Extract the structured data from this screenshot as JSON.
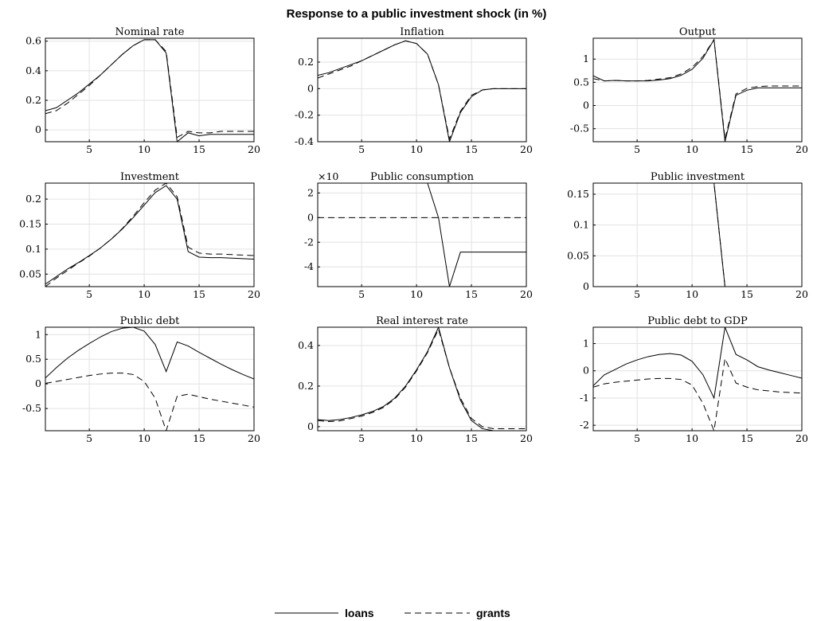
{
  "figure_title": "Response to a public investment shock (in %)",
  "legend": {
    "loans_label": "loans",
    "grants_label": "grants"
  },
  "chart_data": [
    {
      "type": "line",
      "title": "Nominal rate",
      "xlim": [
        1,
        20
      ],
      "ylim": [
        -0.08,
        0.62
      ],
      "xticks": [
        5,
        10,
        15,
        20
      ],
      "yticks": [
        0,
        0.2,
        0.4,
        0.6
      ],
      "ytick_labels": [
        "0",
        "0.2",
        "0.4",
        "0.6"
      ],
      "exponent_label": "",
      "x": [
        1,
        2,
        3,
        4,
        5,
        6,
        7,
        8,
        9,
        10,
        11,
        12,
        13,
        14,
        15,
        16,
        17,
        18,
        19,
        20
      ],
      "series": [
        {
          "name": "loans",
          "values": [
            0.13,
            0.15,
            0.2,
            0.25,
            0.31,
            0.37,
            0.44,
            0.51,
            0.57,
            0.61,
            0.61,
            0.52,
            -0.08,
            -0.02,
            -0.04,
            -0.03,
            -0.03,
            -0.03,
            -0.03,
            -0.03
          ]
        },
        {
          "name": "grants",
          "values": [
            0.11,
            0.13,
            0.18,
            0.24,
            0.3,
            0.37,
            0.44,
            0.51,
            0.57,
            0.61,
            0.61,
            0.53,
            -0.05,
            -0.01,
            -0.02,
            -0.02,
            -0.01,
            -0.01,
            -0.01,
            -0.01
          ]
        }
      ]
    },
    {
      "type": "line",
      "title": "Inflation",
      "xlim": [
        1,
        20
      ],
      "ylim": [
        -0.4,
        0.38
      ],
      "xticks": [
        5,
        10,
        15,
        20
      ],
      "yticks": [
        -0.4,
        -0.2,
        0,
        0.2
      ],
      "ytick_labels": [
        "-0.4",
        "-0.2",
        "0",
        "0.2"
      ],
      "exponent_label": "",
      "x": [
        1,
        2,
        3,
        4,
        5,
        6,
        7,
        8,
        9,
        10,
        11,
        12,
        13,
        14,
        15,
        16,
        17,
        18,
        19,
        20
      ],
      "series": [
        {
          "name": "loans",
          "values": [
            0.1,
            0.12,
            0.15,
            0.18,
            0.21,
            0.25,
            0.29,
            0.33,
            0.36,
            0.34,
            0.26,
            0.03,
            -0.4,
            -0.18,
            -0.06,
            -0.01,
            0,
            0,
            0,
            0
          ]
        },
        {
          "name": "grants",
          "values": [
            0.08,
            0.11,
            0.14,
            0.17,
            0.21,
            0.25,
            0.29,
            0.33,
            0.36,
            0.34,
            0.26,
            0.03,
            -0.38,
            -0.17,
            -0.05,
            -0.01,
            0,
            0,
            0,
            0
          ]
        }
      ]
    },
    {
      "type": "line",
      "title": "Output",
      "xlim": [
        1,
        20
      ],
      "ylim": [
        -0.78,
        1.45
      ],
      "xticks": [
        5,
        10,
        15,
        20
      ],
      "yticks": [
        -0.5,
        0,
        0.5,
        1
      ],
      "ytick_labels": [
        "-0.5",
        "0",
        "0.5",
        "1"
      ],
      "exponent_label": "",
      "x": [
        1,
        2,
        3,
        4,
        5,
        6,
        7,
        8,
        9,
        10,
        11,
        12,
        13,
        14,
        15,
        16,
        17,
        18,
        19,
        20
      ],
      "series": [
        {
          "name": "loans",
          "values": [
            0.64,
            0.53,
            0.54,
            0.53,
            0.53,
            0.53,
            0.55,
            0.58,
            0.65,
            0.78,
            1.02,
            1.42,
            -0.78,
            0.22,
            0.33,
            0.38,
            0.38,
            0.38,
            0.38,
            0.38
          ]
        },
        {
          "name": "grants",
          "values": [
            0.58,
            0.53,
            0.54,
            0.53,
            0.53,
            0.54,
            0.57,
            0.6,
            0.68,
            0.82,
            1.06,
            1.42,
            -0.72,
            0.25,
            0.37,
            0.41,
            0.42,
            0.42,
            0.42,
            0.42
          ]
        }
      ]
    },
    {
      "type": "line",
      "title": "Investment",
      "xlim": [
        1,
        20
      ],
      "ylim": [
        0.025,
        0.232
      ],
      "xticks": [
        5,
        10,
        15,
        20
      ],
      "yticks": [
        0.05,
        0.1,
        0.15,
        0.2
      ],
      "ytick_labels": [
        "0.05",
        "0.1",
        "0.15",
        "0.2"
      ],
      "exponent_label": "",
      "x": [
        1,
        2,
        3,
        4,
        5,
        6,
        7,
        8,
        9,
        10,
        11,
        12,
        13,
        14,
        15,
        16,
        17,
        18,
        19,
        20
      ],
      "series": [
        {
          "name": "loans",
          "values": [
            0.03,
            0.045,
            0.06,
            0.073,
            0.087,
            0.102,
            0.12,
            0.14,
            0.163,
            0.188,
            0.213,
            0.227,
            0.2,
            0.095,
            0.084,
            0.083,
            0.083,
            0.082,
            0.081,
            0.08
          ]
        },
        {
          "name": "grants",
          "values": [
            0.025,
            0.042,
            0.057,
            0.072,
            0.086,
            0.102,
            0.12,
            0.141,
            0.166,
            0.193,
            0.218,
            0.232,
            0.205,
            0.104,
            0.092,
            0.09,
            0.09,
            0.089,
            0.088,
            0.087
          ]
        }
      ]
    },
    {
      "type": "line",
      "title": "Public consumption",
      "xlim": [
        1,
        20
      ],
      "ylim": [
        -5.6,
        2.8
      ],
      "xticks": [
        5,
        10,
        15,
        20
      ],
      "yticks": [
        -4,
        -2,
        0,
        2
      ],
      "ytick_labels": [
        "-4",
        "-2",
        "0",
        "2"
      ],
      "exponent_label": "×10",
      "x": [
        1,
        2,
        3,
        4,
        5,
        6,
        7,
        8,
        9,
        10,
        11,
        12,
        13,
        14,
        15,
        16,
        17,
        18,
        19,
        20
      ],
      "series": [
        {
          "name": "loans",
          "values": [
            2.8,
            2.8,
            2.8,
            2.8,
            2.8,
            2.8,
            2.8,
            2.8,
            2.8,
            2.8,
            2.8,
            0,
            -5.6,
            -2.8,
            -2.8,
            -2.8,
            -2.8,
            -2.8,
            -2.8,
            -2.8
          ]
        },
        {
          "name": "grants",
          "values": [
            0,
            0,
            0,
            0,
            0,
            0,
            0,
            0,
            0,
            0,
            0,
            0,
            0,
            0,
            0,
            0,
            0,
            0,
            0,
            0
          ]
        }
      ]
    },
    {
      "type": "line",
      "title": "Public investment",
      "xlim": [
        1,
        20
      ],
      "ylim": [
        0,
        0.168
      ],
      "xticks": [
        5,
        10,
        15,
        20
      ],
      "yticks": [
        0,
        0.05,
        0.1,
        0.15
      ],
      "ytick_labels": [
        "0",
        "0.05",
        "0.1",
        "0.15"
      ],
      "exponent_label": "",
      "x": [
        1,
        2,
        3,
        4,
        5,
        6,
        7,
        8,
        9,
        10,
        11,
        12,
        13,
        14,
        15,
        16,
        17,
        18,
        19,
        20
      ],
      "series": [
        {
          "name": "loans",
          "values": [
            0.168,
            0.168,
            0.168,
            0.168,
            0.168,
            0.168,
            0.168,
            0.168,
            0.168,
            0.168,
            0.168,
            0.168,
            0,
            0,
            0,
            0,
            0,
            0,
            0,
            0
          ]
        },
        {
          "name": "grants",
          "values": [
            0.168,
            0.168,
            0.168,
            0.168,
            0.168,
            0.168,
            0.168,
            0.168,
            0.168,
            0.168,
            0.168,
            0.168,
            0,
            0,
            0,
            0,
            0,
            0,
            0,
            0
          ]
        }
      ]
    },
    {
      "type": "line",
      "title": "Public debt",
      "xlim": [
        1,
        20
      ],
      "ylim": [
        -0.95,
        1.15
      ],
      "xticks": [
        5,
        10,
        15,
        20
      ],
      "yticks": [
        -0.5,
        0,
        0.5,
        1
      ],
      "ytick_labels": [
        "-0.5",
        "0",
        "0.5",
        "1"
      ],
      "exponent_label": "",
      "x": [
        1,
        2,
        3,
        4,
        5,
        6,
        7,
        8,
        9,
        10,
        11,
        12,
        13,
        14,
        15,
        16,
        17,
        18,
        19,
        20
      ],
      "series": [
        {
          "name": "loans",
          "values": [
            0.12,
            0.33,
            0.52,
            0.68,
            0.82,
            0.95,
            1.06,
            1.13,
            1.15,
            1.07,
            0.8,
            0.25,
            0.85,
            0.77,
            0.64,
            0.52,
            0.4,
            0.29,
            0.19,
            0.1
          ]
        },
        {
          "name": "grants",
          "values": [
            0.01,
            0.05,
            0.09,
            0.13,
            0.17,
            0.2,
            0.22,
            0.22,
            0.19,
            0.05,
            -0.29,
            -0.95,
            -0.25,
            -0.21,
            -0.26,
            -0.31,
            -0.35,
            -0.39,
            -0.43,
            -0.47
          ]
        }
      ]
    },
    {
      "type": "line",
      "title": "Real interest rate",
      "xlim": [
        1,
        20
      ],
      "ylim": [
        -0.02,
        0.49
      ],
      "xticks": [
        5,
        10,
        15,
        20
      ],
      "yticks": [
        0,
        0.2,
        0.4
      ],
      "ytick_labels": [
        "0",
        "0.2",
        "0.4"
      ],
      "exponent_label": "",
      "x": [
        1,
        2,
        3,
        4,
        5,
        6,
        7,
        8,
        9,
        10,
        11,
        12,
        13,
        14,
        15,
        16,
        17,
        18,
        19,
        20
      ],
      "series": [
        {
          "name": "loans",
          "values": [
            0.035,
            0.03,
            0.035,
            0.045,
            0.058,
            0.075,
            0.1,
            0.14,
            0.2,
            0.28,
            0.37,
            0.49,
            0.29,
            0.13,
            0.03,
            -0.01,
            -0.02,
            -0.02,
            -0.02,
            -0.02
          ]
        },
        {
          "name": "grants",
          "values": [
            0.03,
            0.025,
            0.028,
            0.04,
            0.052,
            0.07,
            0.095,
            0.135,
            0.195,
            0.275,
            0.365,
            0.48,
            0.29,
            0.14,
            0.04,
            0,
            -0.01,
            -0.01,
            -0.01,
            -0.01
          ]
        }
      ]
    },
    {
      "type": "line",
      "title": "Public debt to GDP",
      "xlim": [
        1,
        20
      ],
      "ylim": [
        -2.2,
        1.6
      ],
      "xticks": [
        5,
        10,
        15,
        20
      ],
      "yticks": [
        -2,
        -1,
        0,
        1
      ],
      "ytick_labels": [
        "-2",
        "-1",
        "0",
        "1"
      ],
      "exponent_label": "",
      "x": [
        1,
        2,
        3,
        4,
        5,
        6,
        7,
        8,
        9,
        10,
        11,
        12,
        13,
        14,
        15,
        16,
        17,
        18,
        19,
        20
      ],
      "series": [
        {
          "name": "loans",
          "values": [
            -0.55,
            -0.15,
            0.05,
            0.25,
            0.4,
            0.52,
            0.6,
            0.63,
            0.58,
            0.35,
            -0.15,
            -1.0,
            1.6,
            0.6,
            0.4,
            0.15,
            0.03,
            -0.07,
            -0.17,
            -0.27
          ]
        },
        {
          "name": "grants",
          "values": [
            -0.6,
            -0.48,
            -0.42,
            -0.38,
            -0.34,
            -0.3,
            -0.28,
            -0.28,
            -0.32,
            -0.52,
            -1.2,
            -2.2,
            0.45,
            -0.45,
            -0.6,
            -0.7,
            -0.74,
            -0.78,
            -0.8,
            -0.82
          ]
        }
      ]
    }
  ]
}
